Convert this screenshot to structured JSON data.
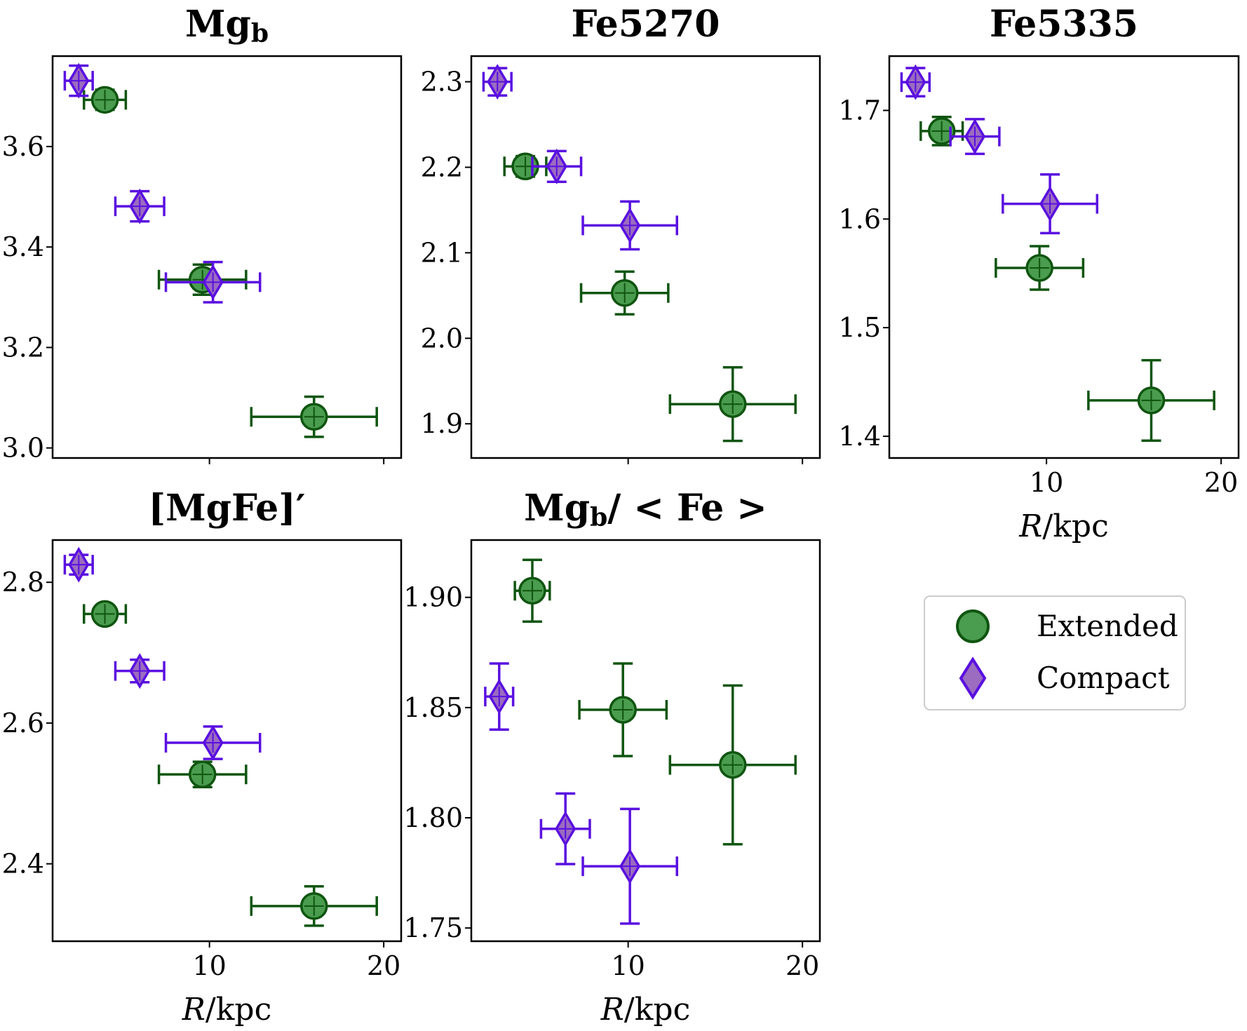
{
  "styles": {
    "Extended": {
      "face": "#4a9c4e",
      "edge": "#0f5510",
      "marker": "circle"
    },
    "Compact": {
      "face": "#9b6cc0",
      "edge": "#5a10e0",
      "marker": "diamond"
    }
  },
  "legend": {
    "entries": [
      "Extended",
      "Compact"
    ],
    "placement": "lower-right"
  },
  "chart_data": [
    {
      "type": "scatter",
      "title": "Mg",
      "title_sub": "b",
      "xlabel": "",
      "xlim": [
        1,
        21
      ],
      "ylim": [
        2.98,
        3.78
      ],
      "xticks": [
        10,
        20
      ],
      "xtick_labels": [
        "",
        ""
      ],
      "yticks": [
        3.0,
        3.2,
        3.4,
        3.6
      ],
      "ytick_labels": [
        "3.0",
        "3.2",
        "3.4",
        "3.6"
      ],
      "series": [
        {
          "name": "Extended",
          "points": [
            {
              "x": 4.0,
              "y": 3.693,
              "xerr": 1.2,
              "yerr": 0.02
            },
            {
              "x": 9.6,
              "y": 3.335,
              "xerr": 2.5,
              "yerr": 0.03
            },
            {
              "x": 16.0,
              "y": 3.062,
              "xerr": 3.6,
              "yerr": 0.04
            }
          ]
        },
        {
          "name": "Compact",
          "points": [
            {
              "x": 2.5,
              "y": 3.731,
              "xerr": 0.8,
              "yerr": 0.03
            },
            {
              "x": 6.0,
              "y": 3.481,
              "xerr": 1.4,
              "yerr": 0.03
            },
            {
              "x": 10.2,
              "y": 3.33,
              "xerr": 2.7,
              "yerr": 0.04
            }
          ]
        }
      ]
    },
    {
      "type": "scatter",
      "title": "Fe5270",
      "xlabel": "",
      "xlim": [
        1,
        21
      ],
      "ylim": [
        1.86,
        2.33
      ],
      "xticks": [
        10,
        20
      ],
      "xtick_labels": [
        "",
        ""
      ],
      "yticks": [
        1.9,
        2.0,
        2.1,
        2.2,
        2.3
      ],
      "ytick_labels": [
        "1.9",
        "2.0",
        "2.1",
        "2.2",
        "2.3"
      ],
      "series": [
        {
          "name": "Extended",
          "points": [
            {
              "x": 4.1,
              "y": 2.201,
              "xerr": 1.2,
              "yerr": 0.012
            },
            {
              "x": 9.8,
              "y": 2.053,
              "xerr": 2.5,
              "yerr": 0.025
            },
            {
              "x": 16.0,
              "y": 1.923,
              "xerr": 3.6,
              "yerr": 0.043
            }
          ]
        },
        {
          "name": "Compact",
          "points": [
            {
              "x": 2.5,
              "y": 2.3,
              "xerr": 0.8,
              "yerr": 0.016
            },
            {
              "x": 5.9,
              "y": 2.201,
              "xerr": 1.4,
              "yerr": 0.018
            },
            {
              "x": 10.1,
              "y": 2.132,
              "xerr": 2.7,
              "yerr": 0.028
            }
          ]
        }
      ]
    },
    {
      "type": "scatter",
      "title": "Fe5335",
      "xlabel": "R/kpc",
      "xlim": [
        1,
        21
      ],
      "ylim": [
        1.38,
        1.75
      ],
      "xticks": [
        10,
        20
      ],
      "xtick_labels": [
        "10",
        "20"
      ],
      "yticks": [
        1.4,
        1.5,
        1.6,
        1.7
      ],
      "ytick_labels": [
        "1.4",
        "1.5",
        "1.6",
        "1.7"
      ],
      "series": [
        {
          "name": "Extended",
          "points": [
            {
              "x": 4.0,
              "y": 1.681,
              "xerr": 1.2,
              "yerr": 0.013
            },
            {
              "x": 9.6,
              "y": 1.555,
              "xerr": 2.5,
              "yerr": 0.02
            },
            {
              "x": 16.0,
              "y": 1.433,
              "xerr": 3.6,
              "yerr": 0.037
            }
          ]
        },
        {
          "name": "Compact",
          "points": [
            {
              "x": 2.5,
              "y": 1.726,
              "xerr": 0.8,
              "yerr": 0.013
            },
            {
              "x": 5.9,
              "y": 1.676,
              "xerr": 1.4,
              "yerr": 0.016
            },
            {
              "x": 10.2,
              "y": 1.614,
              "xerr": 2.7,
              "yerr": 0.027
            }
          ]
        }
      ]
    },
    {
      "type": "scatter",
      "title": "[MgFe]′",
      "xlabel": "R/kpc",
      "xlim": [
        1,
        21
      ],
      "ylim": [
        2.29,
        2.86
      ],
      "xticks": [
        10,
        20
      ],
      "xtick_labels": [
        "10",
        "20"
      ],
      "yticks": [
        2.4,
        2.6,
        2.8
      ],
      "ytick_labels": [
        "2.4",
        "2.6",
        "2.8"
      ],
      "series": [
        {
          "name": "Extended",
          "points": [
            {
              "x": 4.0,
              "y": 2.755,
              "xerr": 1.2,
              "yerr": 0.012
            },
            {
              "x": 9.6,
              "y": 2.527,
              "xerr": 2.5,
              "yerr": 0.018
            },
            {
              "x": 16.0,
              "y": 2.34,
              "xerr": 3.6,
              "yerr": 0.028
            }
          ]
        },
        {
          "name": "Compact",
          "points": [
            {
              "x": 2.5,
              "y": 2.825,
              "xerr": 0.8,
              "yerr": 0.014
            },
            {
              "x": 6.0,
              "y": 2.674,
              "xerr": 1.4,
              "yerr": 0.016
            },
            {
              "x": 10.2,
              "y": 2.572,
              "xerr": 2.7,
              "yerr": 0.023
            }
          ]
        }
      ]
    },
    {
      "type": "scatter",
      "title": "Mg",
      "title_sub": "b",
      "title_rest": "/ < Fe >",
      "xlabel": "R/kpc",
      "xlim": [
        1,
        21
      ],
      "ylim": [
        1.744,
        1.926
      ],
      "xticks": [
        10,
        20
      ],
      "xtick_labels": [
        "10",
        "20"
      ],
      "yticks": [
        1.75,
        1.8,
        1.85,
        1.9
      ],
      "ytick_labels": [
        "1.75",
        "1.80",
        "1.85",
        "1.90"
      ],
      "series": [
        {
          "name": "Extended",
          "points": [
            {
              "x": 4.5,
              "y": 1.903,
              "xerr": 1.0,
              "yerr": 0.014
            },
            {
              "x": 9.7,
              "y": 1.849,
              "xerr": 2.5,
              "yerr": 0.021
            },
            {
              "x": 16.0,
              "y": 1.824,
              "xerr": 3.6,
              "yerr": 0.036
            }
          ]
        },
        {
          "name": "Compact",
          "points": [
            {
              "x": 2.6,
              "y": 1.855,
              "xerr": 0.8,
              "yerr": 0.015
            },
            {
              "x": 6.4,
              "y": 1.795,
              "xerr": 1.4,
              "yerr": 0.016
            },
            {
              "x": 10.1,
              "y": 1.778,
              "xerr": 2.7,
              "yerr": 0.026
            }
          ]
        }
      ]
    }
  ]
}
